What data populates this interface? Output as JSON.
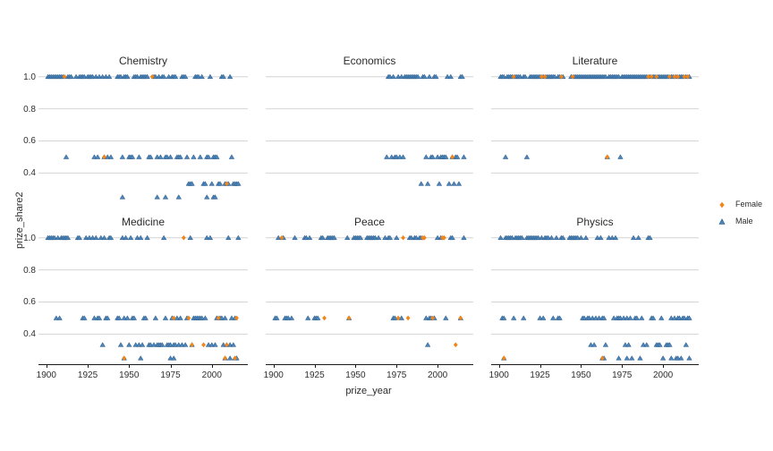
{
  "chart_data": {
    "type": "scatter",
    "title": "",
    "xlabel": "prize_year",
    "ylabel": "prize_share2",
    "x_ticks": [
      1900,
      1925,
      1950,
      1975,
      2000
    ],
    "y_ticks": [
      "1.0",
      "0.8",
      "0.6",
      "0.4"
    ],
    "x_range": [
      1895.25,
      2021.75
    ],
    "y_range": [
      0.2125,
      1.0375
    ],
    "grid": "horizontal-only",
    "gridline_values": [
      1.0,
      0.8,
      0.6,
      0.4
    ],
    "colors": {
      "Female": "#f28518",
      "Male": "#4c83b8",
      "gridline": "#d4d4d4",
      "axis": "#1a1a1a"
    },
    "legend": {
      "position": "right",
      "entries": [
        {
          "label": "Female",
          "marker": "diamond",
          "color": "#f28518"
        },
        {
          "label": "Male",
          "marker": "triangle-up",
          "color": "#4c83b8"
        }
      ]
    },
    "facets": [
      {
        "title": "Chemistry",
        "series": [
          {
            "sex": "Male",
            "share": 1.0,
            "years": [
              1901,
              1902,
              1903,
              1904,
              1905,
              1906,
              1907,
              1908,
              1909,
              1910,
              1913,
              1914,
              1915,
              1918,
              1920,
              1921,
              1922,
              1923,
              1925,
              1926,
              1927,
              1928,
              1930,
              1932,
              1934,
              1936,
              1938,
              1943,
              1944,
              1945,
              1947,
              1948,
              1949,
              1953,
              1954,
              1955,
              1957,
              1958,
              1959,
              1960,
              1961,
              1965,
              1966,
              1968,
              1970,
              1971,
              1974,
              1976,
              1977,
              1978,
              1982,
              1983,
              1984,
              1990,
              1991,
              1992,
              1994,
              1999,
              2006,
              2007,
              2011
            ]
          },
          {
            "sex": "Male",
            "share": 0.5,
            "years": [
              1912,
              1929,
              1931,
              1935,
              1937,
              1939,
              1946,
              1950,
              1951,
              1952,
              1956,
              1962,
              1963,
              1967,
              1969,
              1972,
              1973,
              1975,
              1979,
              1980,
              1981,
              1985,
              1989,
              1993,
              1997,
              1998,
              2001,
              2002,
              2003,
              2012
            ]
          },
          {
            "sex": "Male",
            "share": 0.3333,
            "years": [
              1986,
              1987,
              1988,
              1995,
              1996,
              2000,
              2004,
              2005,
              2008,
              2009,
              2010,
              2013,
              2014,
              2015,
              2016
            ]
          },
          {
            "sex": "Male",
            "share": 0.25,
            "years": [
              1946,
              1967,
              1972,
              1980,
              1997,
              2001,
              2002
            ]
          },
          {
            "sex": "Female",
            "share": 1.0,
            "years": [
              1911,
              1964
            ]
          },
          {
            "sex": "Female",
            "share": 0.5,
            "years": [
              1935
            ]
          },
          {
            "sex": "Female",
            "share": 0.3333,
            "years": [
              2009
            ]
          }
        ]
      },
      {
        "title": "Economics",
        "series": [
          {
            "sex": "Male",
            "share": 1.0,
            "years": [
              1970,
              1971,
              1973,
              1976,
              1978,
              1980,
              1981,
              1982,
              1983,
              1984,
              1985,
              1986,
              1987,
              1988,
              1991,
              1992,
              1995,
              1998,
              1999,
              2006,
              2008,
              2014,
              2015
            ]
          },
          {
            "sex": "Male",
            "share": 0.5,
            "years": [
              1969,
              1972,
              1974,
              1975,
              1977,
              1979,
              1993,
              1996,
              1997,
              2000,
              2002,
              2003,
              2004,
              2005,
              2009,
              2011,
              2012,
              2016
            ]
          },
          {
            "sex": "Male",
            "share": 0.3333,
            "years": [
              1990,
              1994,
              2001,
              2007,
              2010,
              2013
            ]
          },
          {
            "sex": "Female",
            "share": 0.5,
            "years": [
              2009
            ]
          }
        ]
      },
      {
        "title": "Literature",
        "series": [
          {
            "sex": "Male",
            "share": 1.0,
            "years": [
              1901,
              1902,
              1903,
              1905,
              1906,
              1907,
              1908,
              1910,
              1911,
              1912,
              1913,
              1915,
              1916,
              1919,
              1920,
              1921,
              1922,
              1923,
              1924,
              1925,
              1927,
              1929,
              1930,
              1931,
              1932,
              1933,
              1934,
              1936,
              1937,
              1939,
              1944,
              1946,
              1947,
              1948,
              1949,
              1950,
              1951,
              1952,
              1953,
              1954,
              1955,
              1956,
              1957,
              1958,
              1959,
              1960,
              1961,
              1962,
              1963,
              1964,
              1965,
              1967,
              1968,
              1969,
              1970,
              1971,
              1972,
              1973,
              1975,
              1976,
              1977,
              1978,
              1979,
              1980,
              1981,
              1982,
              1983,
              1984,
              1985,
              1986,
              1987,
              1988,
              1989,
              1990,
              1992,
              1994,
              1995,
              1997,
              1998,
              1999,
              2000,
              2001,
              2002,
              2003,
              2005,
              2006,
              2008,
              2010,
              2011,
              2012,
              2014,
              2016
            ]
          },
          {
            "sex": "Male",
            "share": 0.5,
            "years": [
              1904,
              1917,
              1966,
              1974
            ]
          },
          {
            "sex": "Female",
            "share": 1.0,
            "years": [
              1909,
              1926,
              1928,
              1938,
              1945,
              1991,
              1993,
              1996,
              2004,
              2007,
              2009,
              2013,
              2015
            ]
          },
          {
            "sex": "Female",
            "share": 0.5,
            "years": [
              1966
            ]
          }
        ]
      },
      {
        "title": "Medicine",
        "series": [
          {
            "sex": "Male",
            "share": 1.0,
            "years": [
              1901,
              1902,
              1903,
              1904,
              1905,
              1907,
              1909,
              1910,
              1911,
              1912,
              1913,
              1919,
              1920,
              1924,
              1926,
              1928,
              1930,
              1933,
              1935,
              1938,
              1939,
              1946,
              1948,
              1951,
              1955,
              1957,
              1961,
              1971,
              1987,
              1997,
              1999,
              2010,
              2016
            ]
          },
          {
            "sex": "Male",
            "share": 0.5,
            "years": [
              1906,
              1908,
              1922,
              1923,
              1929,
              1931,
              1932,
              1936,
              1937,
              1943,
              1944,
              1947,
              1949,
              1952,
              1953,
              1959,
              1960,
              1966,
              1972,
              1976,
              1979,
              1981,
              1985,
              1989,
              1990,
              1991,
              1992,
              1993,
              1994,
              1996,
              2003,
              2005,
              2006,
              2008,
              2012,
              2014
            ]
          },
          {
            "sex": "Male",
            "share": 0.3333,
            "years": [
              1934,
              1945,
              1950,
              1954,
              1956,
              1958,
              1962,
              1963,
              1965,
              1967,
              1968,
              1969,
              1970,
              1973,
              1974,
              1975,
              1977,
              1978,
              1980,
              1982,
              1984,
              1988,
              1998,
              2000,
              2002,
              2007,
              2009,
              2011,
              2013
            ]
          },
          {
            "sex": "Male",
            "share": 0.25,
            "years": [
              1947,
              1957,
              1975,
              1977,
              2008,
              2011,
              2014,
              2015
            ]
          },
          {
            "sex": "Female",
            "share": 1.0,
            "years": [
              1983
            ]
          },
          {
            "sex": "Female",
            "share": 0.5,
            "years": [
              1977,
              1986,
              2004,
              2015
            ]
          },
          {
            "sex": "Female",
            "share": 0.3333,
            "years": [
              1988,
              1995,
              2009
            ]
          },
          {
            "sex": "Female",
            "share": 0.25,
            "years": [
              1947,
              2008,
              2014
            ]
          }
        ]
      },
      {
        "title": "Peace",
        "series": [
          {
            "sex": "Male",
            "share": 1.0,
            "years": [
              1903,
              1906,
              1913,
              1919,
              1920,
              1922,
              1929,
              1930,
              1933,
              1934,
              1935,
              1936,
              1937,
              1945,
              1949,
              1950,
              1951,
              1952,
              1953,
              1957,
              1958,
              1959,
              1960,
              1961,
              1962,
              1964,
              1968,
              1970,
              1971,
              1975,
              1983,
              1984,
              1986,
              1987,
              1989,
              1990,
              2000,
              2002,
              2008,
              2009,
              2016
            ]
          },
          {
            "sex": "Male",
            "share": 0.5,
            "years": [
              1901,
              1902,
              1907,
              1908,
              1909,
              1911,
              1921,
              1925,
              1926,
              1927,
              1946,
              1973,
              1974,
              1978,
              1993,
              1995,
              1996,
              1998,
              2005,
              2014
            ]
          },
          {
            "sex": "Male",
            "share": 0.3333,
            "years": [
              1994
            ]
          },
          {
            "sex": "Female",
            "share": 1.0,
            "years": [
              1905,
              1979,
              1991,
              1992,
              2003,
              2004
            ]
          },
          {
            "sex": "Female",
            "share": 0.5,
            "years": [
              1931,
              1946,
              1976,
              1982,
              1997,
              2014
            ]
          },
          {
            "sex": "Female",
            "share": 0.3333,
            "years": [
              2011
            ]
          }
        ]
      },
      {
        "title": "Physics",
        "series": [
          {
            "sex": "Male",
            "share": 1.0,
            "years": [
              1901,
              1904,
              1905,
              1906,
              1907,
              1908,
              1910,
              1911,
              1912,
              1913,
              1914,
              1917,
              1918,
              1919,
              1920,
              1921,
              1922,
              1923,
              1924,
              1926,
              1928,
              1929,
              1930,
              1932,
              1935,
              1938,
              1939,
              1943,
              1944,
              1945,
              1946,
              1947,
              1948,
              1950,
              1953,
              1960,
              1962,
              1967,
              1969,
              1971,
              1982,
              1985,
              1991,
              1992
            ]
          },
          {
            "sex": "Male",
            "share": 0.5,
            "years": [
              1902,
              1903,
              1909,
              1915,
              1925,
              1927,
              1933,
              1936,
              1937,
              1951,
              1952,
              1954,
              1955,
              1957,
              1959,
              1961,
              1963,
              1964,
              1970,
              1972,
              1973,
              1974,
              1976,
              1978,
              1980,
              1983,
              1984,
              1987,
              1993,
              1994,
              1999,
              2005,
              2007,
              2009,
              2010,
              2012,
              2013,
              2015,
              2016
            ]
          },
          {
            "sex": "Male",
            "share": 0.3333,
            "years": [
              1956,
              1958,
              1965,
              1977,
              1979,
              1988,
              1990,
              1996,
              1997,
              1998,
              2002,
              2003,
              2004,
              2014
            ]
          },
          {
            "sex": "Male",
            "share": 0.25,
            "years": [
              1903,
              1963,
              1964,
              1973,
              1978,
              1981,
              1986,
              2000,
              2005,
              2008,
              2009,
              2011,
              2016
            ]
          },
          {
            "sex": "Female",
            "share": 0.25,
            "years": [
              1903,
              1963
            ]
          }
        ]
      }
    ]
  },
  "legend": {
    "female_label": "Female",
    "male_label": "Male"
  },
  "axes": {
    "x_title": "prize_year",
    "y_title": "prize_share2"
  }
}
